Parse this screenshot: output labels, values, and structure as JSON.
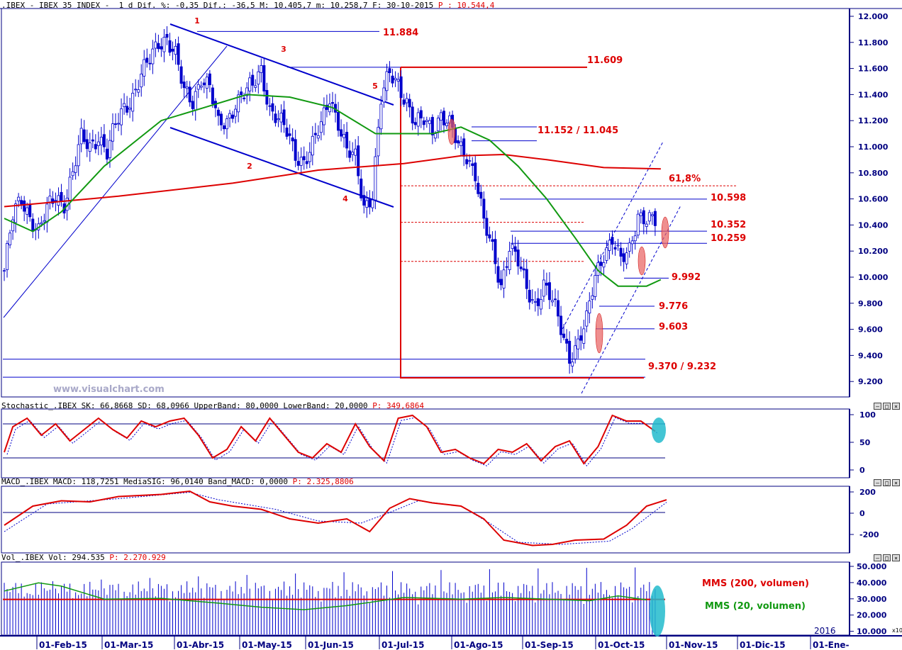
{
  "header": {
    "main": ".IBEX - IBEX 35 INDEX -  1 d Dif. %: -0,35 Dif.: -36,5 M: 10.405,7 m: 10.258,7 F: 30-10-2015",
    "main_p": "P : 10.544,4",
    "stoch": "Stochastic_.IBEX SK: 66,8668 SD: 68,0966 UpperBand: 80,0000 LowerBand: 20,0000",
    "stoch_p": "P: 349,6864",
    "macd": "MACD_.IBEX MACD: 118,7251 MediaSIG: 96,0140 Band_MACD: 0,0000",
    "macd_p": "P: 2.325,8806",
    "vol": "Vol_.IBEX Vol: 294.535",
    "vol_p": "P: 2.270.929"
  },
  "watermark": "www.visualchart.com",
  "pane_buttons": [
    "–",
    "□",
    "×"
  ],
  "price_axis": [
    "12.000",
    "11.800",
    "11.600",
    "11.400",
    "11.200",
    "11.000",
    "10.800",
    "10.600",
    "10.400",
    "10.200",
    "10.000",
    "9.800",
    "9.600",
    "9.400",
    "9.200"
  ],
  "stoch_axis": [
    "100",
    "50",
    "0"
  ],
  "macd_axis": [
    "200",
    "0",
    "-200"
  ],
  "vol_axis": [
    "50.000",
    "40.000",
    "30.000",
    "20.000",
    "10.000"
  ],
  "vol_scale": "x10",
  "date_labels": [
    "01-Feb-15",
    "01-Mar-15",
    "01-Abr-15",
    "01-May-15",
    "01-Jun-15",
    "01-Jul-15",
    "01-Ago-15",
    "01-Sep-15",
    "01-Oct-15",
    "01-Nov-15",
    "01-Dic-15",
    "01-Ene-"
  ],
  "year_label": "2016",
  "wave_labels": [
    "1",
    "2",
    "3",
    "4",
    "5"
  ],
  "level_labels": [
    "11.884",
    "11.609",
    "11.152 / 11.045",
    "61,8%",
    "10.598",
    "10.352",
    "10.259",
    "9.992",
    "9.776",
    "9.603",
    "9.370 / 9.232"
  ],
  "vol_legend": [
    "MMS (200, volumen)",
    "MMS (20, volumen)"
  ],
  "colors": {
    "up": "#ffffff",
    "down": "#0000cc",
    "red": "#dd0000",
    "green": "#119911",
    "blue": "#0000cc",
    "axis": "#000080"
  },
  "chart_data": {
    "type": "candlestick",
    "title": "IBEX 35 INDEX",
    "ylim": [
      9100,
      12050
    ],
    "close_path": [
      [
        0,
        10050
      ],
      [
        3,
        10450
      ],
      [
        6,
        10600
      ],
      [
        9,
        10480
      ],
      [
        12,
        10350
      ],
      [
        15,
        10500
      ],
      [
        18,
        10620
      ],
      [
        21,
        10580
      ],
      [
        24,
        10800
      ],
      [
        27,
        11050
      ],
      [
        30,
        11000
      ],
      [
        33,
        11100
      ],
      [
        36,
        10950
      ],
      [
        39,
        11150
      ],
      [
        42,
        11300
      ],
      [
        45,
        11400
      ],
      [
        48,
        11550
      ],
      [
        51,
        11650
      ],
      [
        54,
        11800
      ],
      [
        57,
        11850
      ],
      [
        60,
        11700
      ],
      [
        63,
        11400
      ],
      [
        66,
        11350
      ],
      [
        69,
        11550
      ],
      [
        72,
        11450
      ],
      [
        75,
        11150
      ],
      [
        78,
        11200
      ],
      [
        81,
        11350
      ],
      [
        84,
        11400
      ],
      [
        87,
        11450
      ],
      [
        90,
        11600
      ],
      [
        93,
        11300
      ],
      [
        96,
        11200
      ],
      [
        99,
        11100
      ],
      [
        102,
        10950
      ],
      [
        105,
        10900
      ],
      [
        108,
        11000
      ],
      [
        111,
        11150
      ],
      [
        114,
        11400
      ],
      [
        117,
        11200
      ],
      [
        120,
        10950
      ],
      [
        123,
        10900
      ],
      [
        126,
        10550
      ],
      [
        129,
        10650
      ],
      [
        132,
        11350
      ],
      [
        135,
        11550
      ],
      [
        138,
        11500
      ],
      [
        141,
        11350
      ],
      [
        144,
        11150
      ],
      [
        147,
        11200
      ],
      [
        150,
        11150
      ],
      [
        153,
        11250
      ],
      [
        156,
        11150
      ],
      [
        159,
        11000
      ],
      [
        162,
        10950
      ],
      [
        165,
        10800
      ],
      [
        168,
        10400
      ],
      [
        171,
        10200
      ],
      [
        174,
        9950
      ],
      [
        177,
        10250
      ],
      [
        180,
        10100
      ],
      [
        183,
        9900
      ],
      [
        186,
        9800
      ],
      [
        189,
        9950
      ],
      [
        192,
        9800
      ],
      [
        195,
        9600
      ],
      [
        198,
        9400
      ],
      [
        201,
        9500
      ],
      [
        204,
        9650
      ],
      [
        207,
        10000
      ],
      [
        210,
        10200
      ],
      [
        213,
        10300
      ],
      [
        216,
        10100
      ],
      [
        219,
        10200
      ],
      [
        222,
        10500
      ],
      [
        225,
        10450
      ],
      [
        228,
        10405
      ]
    ],
    "sma200": [
      [
        0,
        10540
      ],
      [
        40,
        10620
      ],
      [
        80,
        10720
      ],
      [
        110,
        10820
      ],
      [
        140,
        10870
      ],
      [
        160,
        10930
      ],
      [
        175,
        10940
      ],
      [
        190,
        10900
      ],
      [
        210,
        10840
      ],
      [
        230,
        10830
      ]
    ],
    "sma40": [
      [
        0,
        10450
      ],
      [
        10,
        10350
      ],
      [
        20,
        10500
      ],
      [
        35,
        10850
      ],
      [
        55,
        11200
      ],
      [
        70,
        11300
      ],
      [
        85,
        11400
      ],
      [
        100,
        11380
      ],
      [
        115,
        11300
      ],
      [
        130,
        11100
      ],
      [
        150,
        11100
      ],
      [
        160,
        11150
      ],
      [
        170,
        11050
      ],
      [
        180,
        10850
      ],
      [
        190,
        10600
      ],
      [
        200,
        10300
      ],
      [
        208,
        10050
      ],
      [
        215,
        9930
      ],
      [
        225,
        9930
      ],
      [
        230,
        9980
      ]
    ],
    "levels": [
      11884,
      11609,
      11152,
      11045,
      10700,
      10598,
      10352,
      10259,
      9992,
      9776,
      9603,
      9370,
      9232
    ],
    "fib_61_8": 10700,
    "stochastic": [
      [
        0,
        30
      ],
      [
        3,
        75
      ],
      [
        8,
        90
      ],
      [
        13,
        60
      ],
      [
        18,
        80
      ],
      [
        23,
        50
      ],
      [
        28,
        70
      ],
      [
        33,
        90
      ],
      [
        38,
        70
      ],
      [
        43,
        55
      ],
      [
        48,
        85
      ],
      [
        53,
        75
      ],
      [
        58,
        85
      ],
      [
        63,
        90
      ],
      [
        68,
        60
      ],
      [
        73,
        20
      ],
      [
        78,
        35
      ],
      [
        83,
        75
      ],
      [
        88,
        50
      ],
      [
        93,
        90
      ],
      [
        98,
        60
      ],
      [
        103,
        30
      ],
      [
        108,
        20
      ],
      [
        113,
        45
      ],
      [
        118,
        30
      ],
      [
        123,
        80
      ],
      [
        128,
        40
      ],
      [
        133,
        15
      ],
      [
        138,
        90
      ],
      [
        143,
        95
      ],
      [
        148,
        75
      ],
      [
        153,
        30
      ],
      [
        158,
        35
      ],
      [
        163,
        20
      ],
      [
        168,
        10
      ],
      [
        173,
        35
      ],
      [
        178,
        30
      ],
      [
        183,
        45
      ],
      [
        188,
        15
      ],
      [
        193,
        40
      ],
      [
        198,
        50
      ],
      [
        203,
        10
      ],
      [
        208,
        40
      ],
      [
        213,
        95
      ],
      [
        218,
        85
      ],
      [
        223,
        85
      ],
      [
        228,
        67
      ]
    ],
    "stochastic_bands": [
      20,
      80
    ],
    "macd": [
      [
        0,
        -120
      ],
      [
        10,
        60
      ],
      [
        20,
        110
      ],
      [
        30,
        100
      ],
      [
        40,
        150
      ],
      [
        55,
        170
      ],
      [
        65,
        200
      ],
      [
        72,
        100
      ],
      [
        80,
        60
      ],
      [
        90,
        30
      ],
      [
        100,
        -60
      ],
      [
        110,
        -100
      ],
      [
        120,
        -60
      ],
      [
        128,
        -180
      ],
      [
        135,
        40
      ],
      [
        142,
        130
      ],
      [
        150,
        90
      ],
      [
        160,
        60
      ],
      [
        168,
        -60
      ],
      [
        175,
        -260
      ],
      [
        185,
        -310
      ],
      [
        192,
        -300
      ],
      [
        200,
        -260
      ],
      [
        210,
        -250
      ],
      [
        218,
        -120
      ],
      [
        225,
        60
      ],
      [
        232,
        119
      ]
    ],
    "macd_signal": [
      [
        0,
        -180
      ],
      [
        15,
        80
      ],
      [
        40,
        130
      ],
      [
        65,
        190
      ],
      [
        75,
        120
      ],
      [
        95,
        30
      ],
      [
        110,
        -80
      ],
      [
        125,
        -100
      ],
      [
        135,
        0
      ],
      [
        145,
        110
      ],
      [
        160,
        60
      ],
      [
        170,
        -100
      ],
      [
        180,
        -280
      ],
      [
        195,
        -300
      ],
      [
        212,
        -270
      ],
      [
        220,
        -150
      ],
      [
        232,
        96
      ]
    ],
    "volume_sma200": 29800,
    "volume_sma20": [
      [
        0,
        35000
      ],
      [
        12,
        40000
      ],
      [
        20,
        38000
      ],
      [
        35,
        30000
      ],
      [
        55,
        30500
      ],
      [
        75,
        27500
      ],
      [
        90,
        25000
      ],
      [
        105,
        23500
      ],
      [
        120,
        26000
      ],
      [
        140,
        31000
      ],
      [
        160,
        30000
      ],
      [
        175,
        31000
      ],
      [
        190,
        30000
      ],
      [
        205,
        29000
      ],
      [
        215,
        32000
      ],
      [
        225,
        29500
      ]
    ]
  }
}
